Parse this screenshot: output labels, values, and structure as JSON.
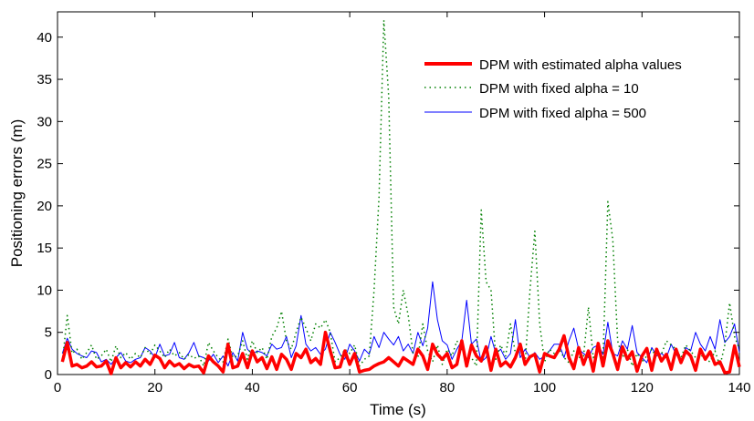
{
  "chart_data": {
    "type": "line",
    "xlabel": "Time (s)",
    "ylabel": "Positioning errors (m)",
    "xlim": [
      0,
      140
    ],
    "ylim": [
      0,
      43
    ],
    "xticks": [
      0,
      20,
      40,
      60,
      80,
      100,
      120,
      140
    ],
    "yticks": [
      0,
      5,
      10,
      15,
      20,
      25,
      30,
      35,
      40
    ],
    "grid": false,
    "legend_position": "top-right",
    "series": [
      {
        "name": "DPM with estimated alpha values",
        "color": "#ff0000",
        "style": "solid-thick",
        "x": [
          1,
          2,
          3,
          4,
          5,
          6,
          7,
          8,
          9,
          10,
          11,
          12,
          13,
          14,
          15,
          16,
          17,
          18,
          19,
          20,
          21,
          22,
          23,
          24,
          25,
          26,
          27,
          28,
          29,
          30,
          31,
          32,
          33,
          34,
          35,
          36,
          37,
          38,
          39,
          40,
          41,
          42,
          43,
          44,
          45,
          46,
          47,
          48,
          49,
          50,
          51,
          52,
          53,
          54,
          55,
          56,
          57,
          58,
          59,
          60,
          61,
          62,
          63,
          64,
          65,
          66,
          67,
          68,
          69,
          70,
          71,
          72,
          73,
          74,
          75,
          76,
          77,
          78,
          79,
          80,
          81,
          82,
          83,
          84,
          85,
          86,
          87,
          88,
          89,
          90,
          91,
          92,
          93,
          94,
          95,
          96,
          97,
          98,
          99,
          100,
          101,
          102,
          103,
          104,
          105,
          106,
          107,
          108,
          109,
          110,
          111,
          112,
          113,
          114,
          115,
          116,
          117,
          118,
          119,
          120,
          121,
          122,
          123,
          124,
          125,
          126,
          127,
          128,
          129,
          130,
          131,
          132,
          133,
          134,
          135,
          136,
          137,
          138,
          139,
          140
        ],
        "values": [
          1.5,
          3.8,
          1.0,
          1.2,
          0.8,
          1.0,
          1.5,
          0.9,
          1.0,
          1.6,
          0.1,
          2.0,
          0.8,
          1.4,
          0.9,
          1.5,
          1.0,
          1.8,
          1.2,
          2.3,
          1.9,
          0.8,
          1.6,
          1.0,
          1.3,
          0.7,
          1.2,
          0.9,
          1.0,
          0.2,
          2.2,
          1.5,
          1.0,
          0.3,
          3.6,
          0.8,
          1.0,
          2.5,
          0.8,
          2.8,
          1.5,
          2.0,
          0.7,
          2.1,
          0.6,
          2.4,
          1.8,
          0.6,
          2.5,
          2.0,
          3.0,
          1.4,
          1.9,
          1.2,
          5.0,
          2.8,
          0.8,
          0.9,
          2.8,
          1.2,
          2.5,
          0.3,
          0.5,
          0.6,
          1.0,
          1.3,
          1.5,
          2.0,
          1.5,
          1.0,
          2.0,
          1.6,
          1.2,
          3.0,
          2.2,
          0.6,
          3.6,
          2.4,
          1.8,
          2.5,
          0.8,
          1.2,
          4.0,
          1.0,
          3.5,
          2.2,
          1.6,
          3.3,
          0.5,
          3.0,
          1.0,
          1.5,
          0.9,
          2.0,
          3.6,
          1.2,
          2.1,
          2.4,
          0.3,
          2.5,
          2.2,
          2.0,
          3.0,
          4.6,
          2.0,
          0.7,
          3.2,
          1.2,
          2.8,
          0.4,
          3.7,
          1.0,
          4.0,
          2.5,
          0.6,
          3.3,
          1.8,
          2.7,
          0.4,
          2.2,
          3.1,
          0.5,
          3.0,
          1.6,
          2.4,
          0.6,
          3.0,
          1.4,
          2.8,
          2.2,
          0.5,
          3.0,
          1.8,
          2.7,
          1.2,
          1.5,
          0.2,
          0.3,
          3.4,
          0.9
        ]
      },
      {
        "name": "DPM with fixed alpha = 10",
        "color": "#007f00",
        "style": "dotted",
        "x": [
          1,
          2,
          3,
          4,
          5,
          6,
          7,
          8,
          9,
          10,
          11,
          12,
          13,
          14,
          15,
          16,
          17,
          18,
          19,
          20,
          21,
          22,
          23,
          24,
          25,
          26,
          27,
          28,
          29,
          30,
          31,
          32,
          33,
          34,
          35,
          36,
          37,
          38,
          39,
          40,
          41,
          42,
          43,
          44,
          45,
          46,
          47,
          48,
          49,
          50,
          51,
          52,
          53,
          54,
          55,
          56,
          57,
          58,
          59,
          60,
          61,
          62,
          63,
          64,
          65,
          66,
          67,
          68,
          69,
          70,
          71,
          72,
          73,
          74,
          75,
          76,
          77,
          78,
          79,
          80,
          81,
          82,
          83,
          84,
          85,
          86,
          87,
          88,
          89,
          90,
          91,
          92,
          93,
          94,
          95,
          96,
          97,
          98,
          99,
          100,
          101,
          102,
          103,
          104,
          105,
          106,
          107,
          108,
          109,
          110,
          111,
          112,
          113,
          114,
          115,
          116,
          117,
          118,
          119,
          120,
          121,
          122,
          123,
          124,
          125,
          126,
          127,
          128,
          129,
          130,
          131,
          132,
          133,
          134,
          135,
          136,
          137,
          138,
          139,
          140
        ],
        "values": [
          1.5,
          7.0,
          2.5,
          3.0,
          1.8,
          2.6,
          3.5,
          1.8,
          2.2,
          3.0,
          1.5,
          3.4,
          2.0,
          2.6,
          1.8,
          2.5,
          2.0,
          3.2,
          2.4,
          3.5,
          2.8,
          2.0,
          3.0,
          2.2,
          2.6,
          1.8,
          2.4,
          1.9,
          2.2,
          1.0,
          3.8,
          2.8,
          2.0,
          1.5,
          4.2,
          2.0,
          2.2,
          4.0,
          1.8,
          4.0,
          2.6,
          3.2,
          1.8,
          4.5,
          5.5,
          7.5,
          4.0,
          3.0,
          5.0,
          6.8,
          5.5,
          4.0,
          6.0,
          5.5,
          6.5,
          5.0,
          1.5,
          2.0,
          3.0,
          2.5,
          3.5,
          1.0,
          1.8,
          2.2,
          10.0,
          21.0,
          42.0,
          33.0,
          8.0,
          6.0,
          10.0,
          7.0,
          2.5,
          2.0,
          6.0,
          2.8,
          1.5,
          3.5,
          1.2,
          3.0,
          2.2,
          4.0,
          3.0,
          1.8,
          2.0,
          1.0,
          19.5,
          11.0,
          10.0,
          1.8,
          3.5,
          2.2,
          6.0,
          2.5,
          3.0,
          1.2,
          10.0,
          17.0,
          6.0,
          1.5,
          3.0,
          2.5,
          3.0,
          2.0,
          1.4,
          2.8,
          2.0,
          2.2,
          8.0,
          2.0,
          3.0,
          1.8,
          20.5,
          16.0,
          4.0,
          2.0,
          3.0,
          1.0,
          2.5,
          1.5,
          2.2,
          3.0,
          2.0,
          2.4,
          4.0,
          3.5,
          3.0,
          2.0,
          3.5,
          2.8,
          2.0,
          2.4,
          1.8,
          1.5,
          2.8,
          1.0,
          3.5,
          8.5,
          4.5,
          3.0
        ]
      },
      {
        "name": "DPM with fixed alpha = 500",
        "color": "#0000ff",
        "style": "solid-thin",
        "x": [
          1,
          2,
          3,
          4,
          5,
          6,
          7,
          8,
          9,
          10,
          11,
          12,
          13,
          14,
          15,
          16,
          17,
          18,
          19,
          20,
          21,
          22,
          23,
          24,
          25,
          26,
          27,
          28,
          29,
          30,
          31,
          32,
          33,
          34,
          35,
          36,
          37,
          38,
          39,
          40,
          41,
          42,
          43,
          44,
          45,
          46,
          47,
          48,
          49,
          50,
          51,
          52,
          53,
          54,
          55,
          56,
          57,
          58,
          59,
          60,
          61,
          62,
          63,
          64,
          65,
          66,
          67,
          68,
          69,
          70,
          71,
          72,
          73,
          74,
          75,
          76,
          77,
          78,
          79,
          80,
          81,
          82,
          83,
          84,
          85,
          86,
          87,
          88,
          89,
          90,
          91,
          92,
          93,
          94,
          95,
          96,
          97,
          98,
          99,
          100,
          101,
          102,
          103,
          104,
          105,
          106,
          107,
          108,
          109,
          110,
          111,
          112,
          113,
          114,
          115,
          116,
          117,
          118,
          119,
          120,
          121,
          122,
          123,
          124,
          125,
          126,
          127,
          128,
          129,
          130,
          131,
          132,
          133,
          134,
          135,
          136,
          137,
          138,
          139,
          140
        ],
        "values": [
          2.5,
          4.3,
          3.0,
          2.5,
          2.2,
          2.0,
          2.8,
          2.6,
          1.5,
          1.8,
          1.2,
          2.0,
          2.6,
          1.6,
          1.4,
          1.8,
          2.0,
          3.2,
          2.8,
          2.0,
          3.6,
          2.2,
          2.4,
          3.8,
          2.0,
          1.8,
          2.6,
          3.8,
          2.2,
          2.0,
          1.6,
          2.4,
          1.4,
          2.2,
          1.0,
          2.6,
          1.6,
          5.0,
          3.0,
          2.4,
          2.8,
          2.6,
          2.2,
          3.6,
          3.0,
          3.2,
          4.5,
          2.0,
          3.4,
          7.0,
          3.6,
          2.8,
          3.2,
          2.4,
          3.0,
          5.0,
          3.8,
          2.4,
          1.8,
          3.6,
          2.8,
          1.6,
          3.0,
          2.4,
          4.5,
          3.2,
          5.0,
          4.2,
          3.5,
          4.5,
          2.8,
          3.6,
          2.5,
          5.0,
          3.4,
          5.5,
          11.0,
          6.5,
          4.0,
          3.5,
          1.8,
          3.0,
          4.0,
          8.8,
          3.6,
          4.2,
          1.5,
          2.0,
          4.5,
          2.5,
          3.0,
          1.8,
          2.5,
          6.5,
          2.0,
          3.0,
          2.0,
          2.6,
          1.8,
          2.2,
          2.8,
          3.6,
          3.6,
          2.0,
          4.0,
          5.5,
          3.0,
          2.5,
          2.0,
          3.2,
          3.5,
          2.4,
          6.2,
          2.5,
          2.2,
          4.0,
          3.0,
          5.8,
          2.6,
          2.0,
          1.4,
          3.2,
          2.2,
          2.5,
          2.0,
          3.6,
          2.4,
          1.6,
          3.2,
          2.8,
          5.0,
          3.6,
          2.8,
          4.5,
          3.0,
          6.5,
          3.8,
          4.5,
          6.0,
          2.6
        ]
      }
    ]
  }
}
